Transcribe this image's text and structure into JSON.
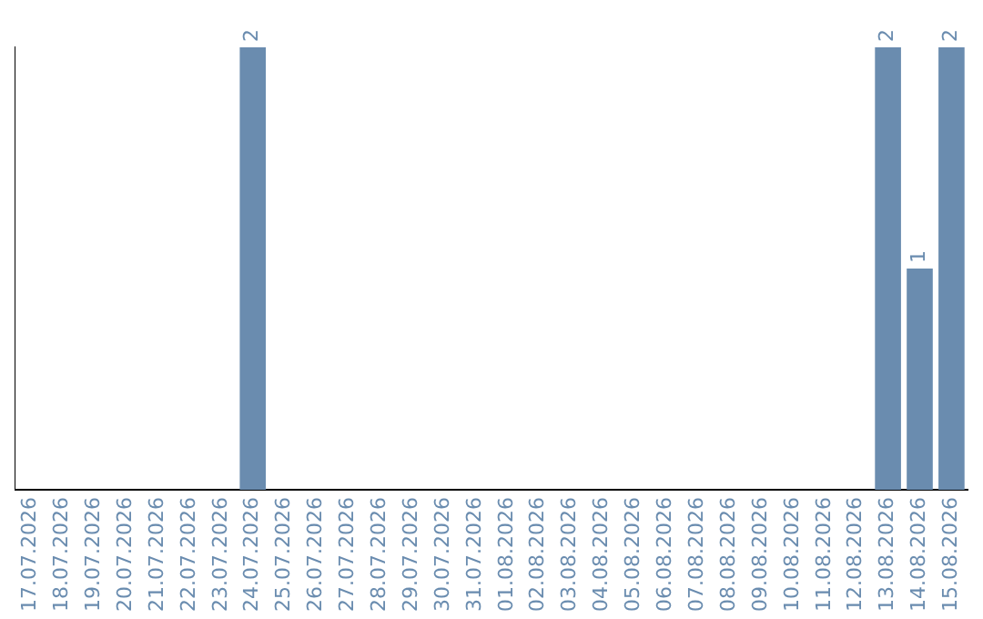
{
  "chart_data": {
    "type": "bar",
    "categories": [
      "17.07.2026",
      "18.07.2026",
      "19.07.2026",
      "20.07.2026",
      "21.07.2026",
      "22.07.2026",
      "23.07.2026",
      "24.07.2026",
      "25.07.2026",
      "26.07.2026",
      "27.07.2026",
      "28.07.2026",
      "29.07.2026",
      "30.07.2026",
      "31.07.2026",
      "01.08.2026",
      "02.08.2026",
      "03.08.2026",
      "04.08.2026",
      "05.08.2026",
      "06.08.2026",
      "07.08.2026",
      "08.08.2026",
      "09.08.2026",
      "10.08.2026",
      "11.08.2026",
      "12.08.2026",
      "13.08.2026",
      "14.08.2026",
      "15.08.2026"
    ],
    "values": [
      0,
      0,
      0,
      0,
      0,
      0,
      0,
      2,
      0,
      0,
      0,
      0,
      0,
      0,
      0,
      0,
      0,
      0,
      0,
      0,
      0,
      0,
      0,
      0,
      0,
      0,
      0,
      2,
      1,
      2
    ],
    "value_labels": [
      null,
      null,
      null,
      null,
      null,
      null,
      null,
      "2",
      null,
      null,
      null,
      null,
      null,
      null,
      null,
      null,
      null,
      null,
      null,
      null,
      null,
      null,
      null,
      null,
      null,
      null,
      null,
      "2",
      "1",
      "2"
    ],
    "color": "#6a8caf",
    "grid": false,
    "legend": false,
    "tick_labels": "x"
  }
}
